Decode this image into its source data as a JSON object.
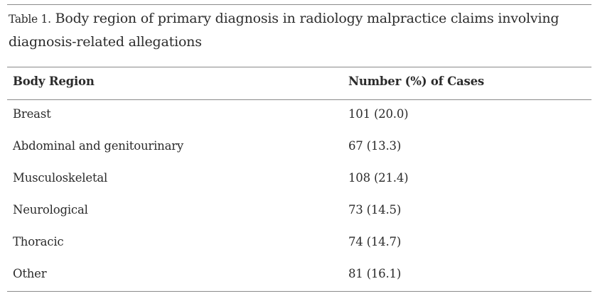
{
  "table": {
    "caption_label": "Table 1.",
    "caption_text": " Body region of primary diagnosis in radiology malpractice claims involving diagnosis-related allegations",
    "headers": [
      "Body Region",
      "Number (%) of Cases"
    ],
    "rows": [
      [
        "Breast",
        "101 (20.0)"
      ],
      [
        "Abdominal and genitourinary",
        "67 (13.3)"
      ],
      [
        "Musculoskeletal",
        "108 (21.4)"
      ],
      [
        "Neurological",
        "73 (14.5)"
      ],
      [
        "Thoracic",
        "74 (14.7)"
      ],
      [
        "Other",
        "81 (16.1)"
      ]
    ]
  }
}
